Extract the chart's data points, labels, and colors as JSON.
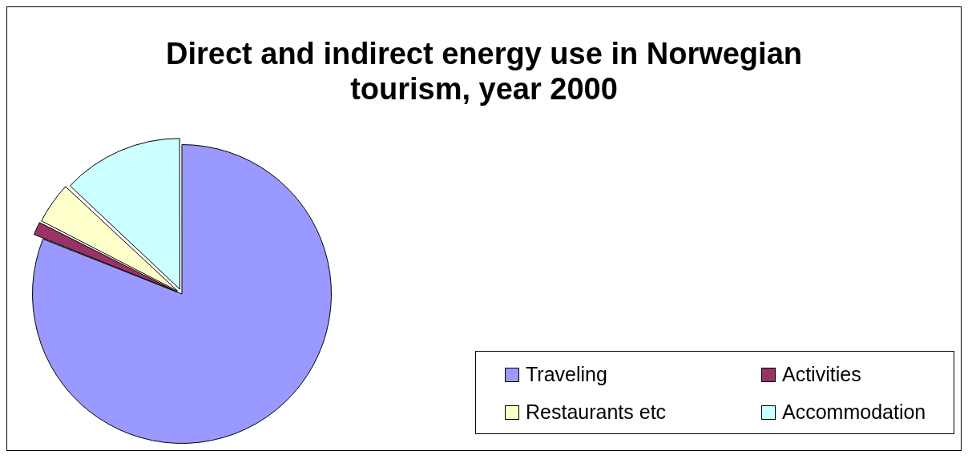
{
  "chart_data": {
    "type": "pie",
    "title": "Direct and indirect energy use in Norwegian tourism, year 2000",
    "categories": [
      "Traveling",
      "Activities",
      "Restaurants etc",
      "Accommodation"
    ],
    "values": [
      81,
      1.5,
      4.5,
      13
    ],
    "colors": [
      "#9999ff",
      "#993366",
      "#ffffcc",
      "#ccffff"
    ],
    "legend": "bottom right"
  }
}
